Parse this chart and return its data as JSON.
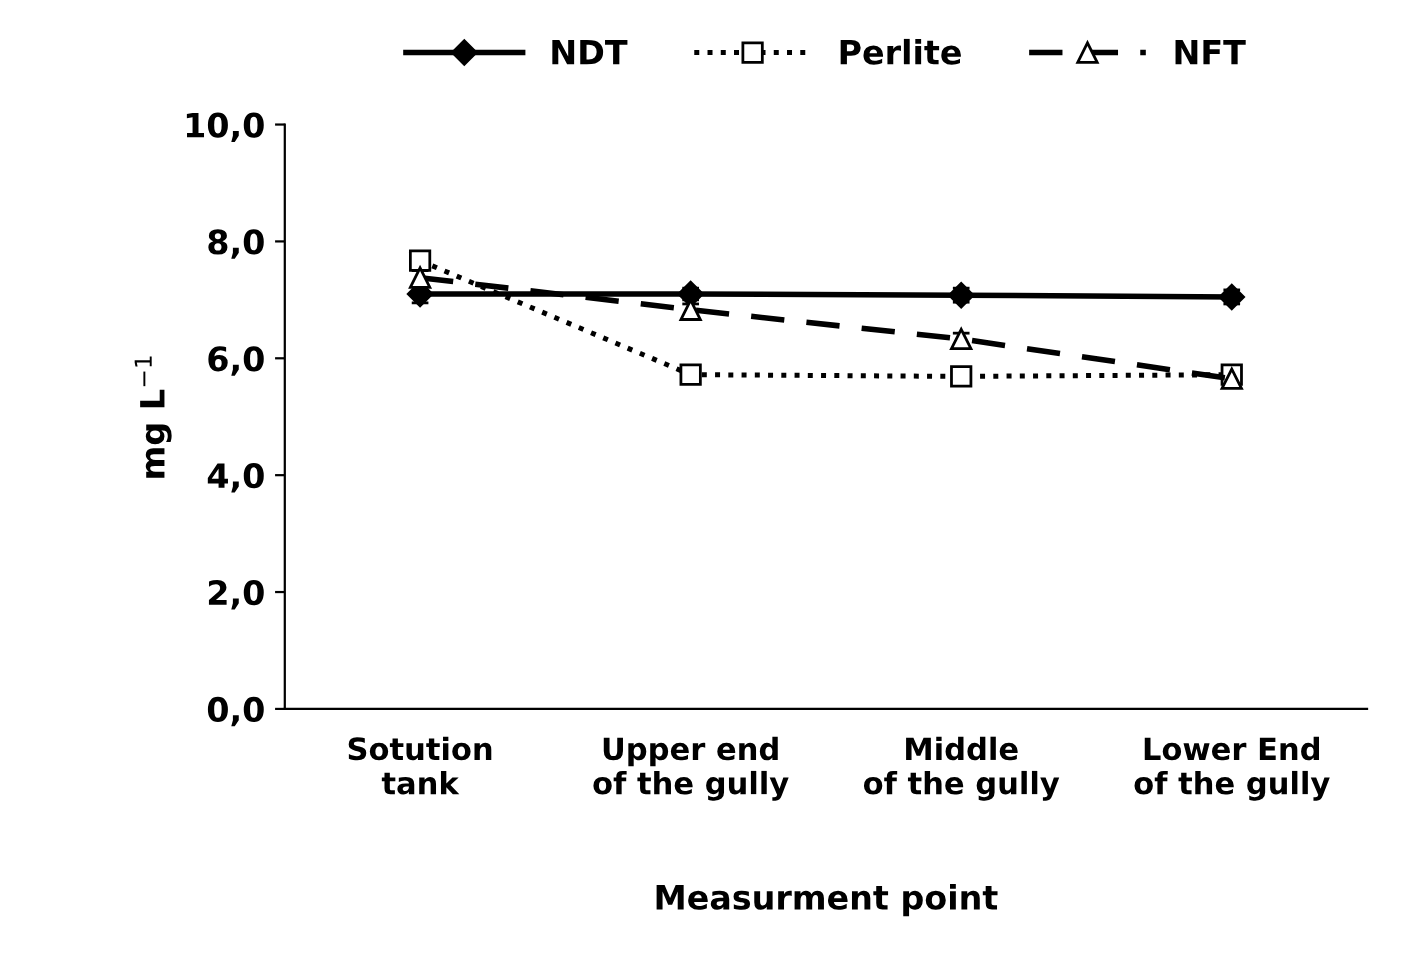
{
  "chart_data": {
    "type": "line",
    "xlabel": "Measurment point",
    "ylabel": "mg L$^{−1}$",
    "categories": [
      "Sotution\ntank",
      "Upper end\nof the gully",
      "Middle\nof the gully",
      "Lower End\nof the gully"
    ],
    "series": [
      {
        "name": "NDT",
        "color": "#000000",
        "values": [
          7.1,
          7.1,
          7.08,
          7.05
        ],
        "errors": [
          0.15,
          0.1,
          0.12,
          0.12
        ],
        "marker": "diamond",
        "line_style": "solid"
      },
      {
        "name": "Perlite",
        "color": "#000000",
        "values": [
          7.67,
          5.72,
          5.69,
          5.72
        ],
        "errors": [
          0.1,
          0.08,
          0.08,
          0.08
        ],
        "marker": "square",
        "line_style": "dotted"
      },
      {
        "name": "NFT",
        "color": "#000000",
        "values": [
          7.38,
          6.83,
          6.33,
          5.65
        ],
        "errors": [
          0.12,
          0.1,
          0.1,
          0.08
        ],
        "marker": "triangle",
        "line_style": "dashed"
      }
    ],
    "ylim": [
      0,
      10
    ],
    "yticks": [
      {
        "value": 0,
        "label": "0,0"
      },
      {
        "value": 2,
        "label": "2,0"
      },
      {
        "value": 4,
        "label": "4,0"
      },
      {
        "value": 6,
        "label": "6,0"
      },
      {
        "value": 8,
        "label": "8,0"
      },
      {
        "value": 10,
        "label": "10,0"
      }
    ],
    "grid": false,
    "legend": "top"
  }
}
